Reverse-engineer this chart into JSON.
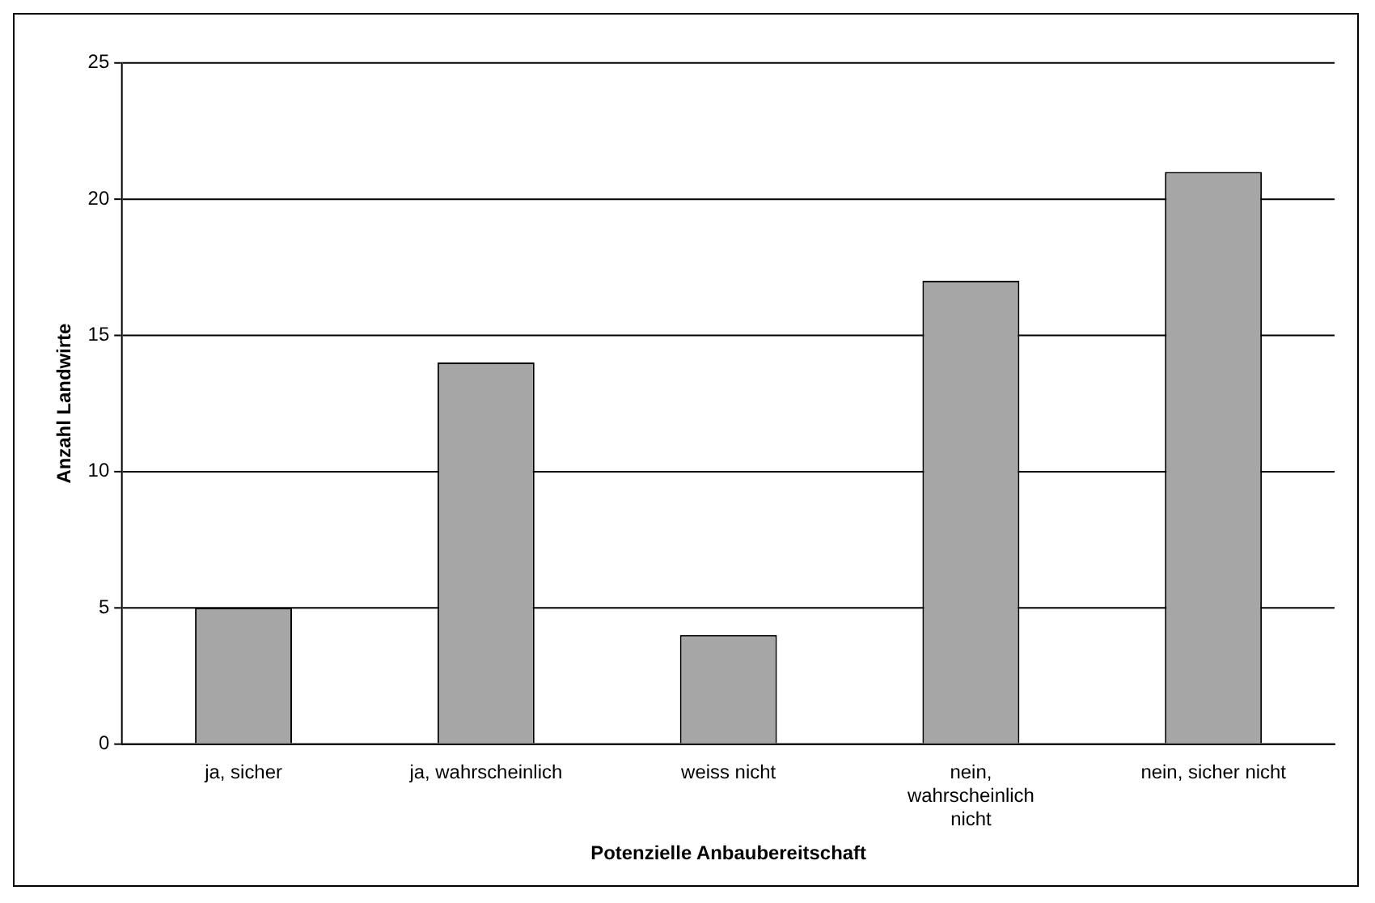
{
  "chart_data": {
    "type": "bar",
    "xlabel": "Potenzielle Anbaubereitschaft",
    "ylabel": "Anzahl Landwirte",
    "categories": [
      "ja, sicher",
      "ja, wahrscheinlich",
      "weiss nicht",
      "nein, wahrscheinlich nicht",
      "nein, sicher nicht"
    ],
    "values": [
      5,
      14,
      4,
      17,
      21
    ],
    "color": "#a6a6a6",
    "ylim": [
      0,
      25
    ],
    "yticks": [
      0,
      5,
      10,
      15,
      20,
      25
    ],
    "grid": "y",
    "legend": false
  }
}
